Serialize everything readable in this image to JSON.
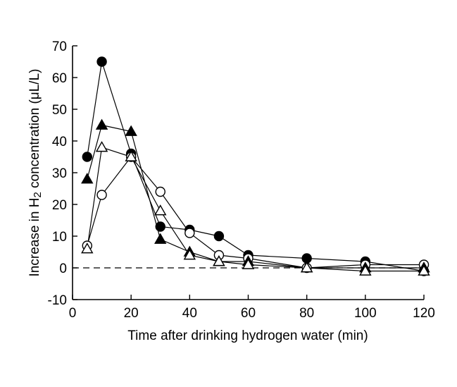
{
  "chart_data": {
    "type": "line",
    "title": "",
    "xlabel": "Time after drinking hydrogen water (min)",
    "ylabel_prefix": "Increase in H",
    "ylabel_subscript": "2",
    "ylabel_suffix": " concentration (μL/L)",
    "xlim": [
      0,
      120
    ],
    "ylim": [
      -10,
      70
    ],
    "xticks": [
      0,
      20,
      40,
      60,
      80,
      100,
      120
    ],
    "yticks": [
      -10,
      0,
      10,
      20,
      30,
      40,
      50,
      60,
      70
    ],
    "grid": false,
    "legend": "none",
    "reference_line": {
      "y": 0,
      "style": "dashed"
    },
    "series": [
      {
        "marker": "filled-circle",
        "color": "#000000",
        "x": [
          5,
          10,
          20,
          30,
          40,
          50,
          60,
          80,
          100,
          120
        ],
        "y": [
          35,
          65,
          36,
          13,
          12,
          10,
          4,
          3,
          2,
          -1
        ]
      },
      {
        "marker": "open-circle",
        "color": "#000000",
        "x": [
          5,
          10,
          20,
          30,
          40,
          50,
          60,
          80,
          100,
          120
        ],
        "y": [
          7,
          23,
          35,
          24,
          11,
          4,
          3,
          0,
          1,
          1
        ]
      },
      {
        "marker": "filled-triangle",
        "color": "#000000",
        "x": [
          5,
          10,
          20,
          30,
          40,
          50,
          60,
          80,
          100,
          120
        ],
        "y": [
          28,
          45,
          43,
          9,
          5,
          2,
          2,
          0,
          0,
          0
        ]
      },
      {
        "marker": "open-triangle",
        "color": "#000000",
        "x": [
          5,
          10,
          20,
          30,
          40,
          50,
          60,
          80,
          100,
          120
        ],
        "y": [
          6,
          38,
          35,
          18,
          4,
          2,
          1,
          0,
          -1,
          -1
        ]
      }
    ]
  }
}
